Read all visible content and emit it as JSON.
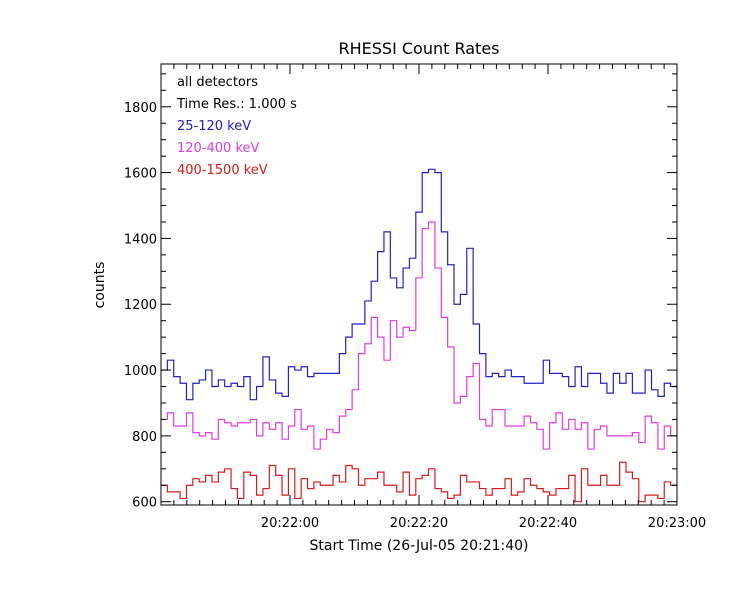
{
  "chart_data": {
    "type": "line",
    "title": "RHESSI Count Rates",
    "xlabel": "Start Time (26-Jul-05 20:21:40)",
    "ylabel": "counts",
    "x_unit": "seconds",
    "xlim": [
      0,
      80
    ],
    "ylim": [
      590,
      1930
    ],
    "x_ticks": [
      {
        "value": 20,
        "label": "20:22:00"
      },
      {
        "value": 40,
        "label": "20:22:20"
      },
      {
        "value": 60,
        "label": "20:22:40"
      },
      {
        "value": 80,
        "label": "20:23:00"
      }
    ],
    "y_ticks": [
      {
        "value": 600,
        "label": "600"
      },
      {
        "value": 800,
        "label": "800"
      },
      {
        "value": 1000,
        "label": "1000"
      },
      {
        "value": 1200,
        "label": "1200"
      },
      {
        "value": 1400,
        "label": "1400"
      },
      {
        "value": 1600,
        "label": "1600"
      },
      {
        "value": 1800,
        "label": "1800"
      }
    ],
    "grid": false,
    "legend_position": "top-left",
    "annotations": [
      "all detectors",
      "Time Res.: 1.000 s"
    ],
    "series": [
      {
        "name": "25-120 keV",
        "color": "#2222cc",
        "values": [
          1000,
          1030,
          980,
          960,
          910,
          960,
          970,
          1000,
          950,
          970,
          950,
          960,
          950,
          980,
          910,
          950,
          1040,
          970,
          930,
          920,
          1010,
          1000,
          1010,
          980,
          990,
          990,
          990,
          990,
          1050,
          1100,
          1140,
          1140,
          1210,
          1270,
          1360,
          1420,
          1280,
          1250,
          1310,
          1340,
          1480,
          1600,
          1610,
          1600,
          1420,
          1320,
          1200,
          1230,
          1370,
          1140,
          1050,
          980,
          990,
          980,
          1000,
          980,
          980,
          960,
          960,
          960,
          1030,
          990,
          990,
          980,
          950,
          1010,
          950,
          990,
          990,
          960,
          930,
          990,
          960,
          990,
          930,
          930,
          1000,
          940,
          920,
          960,
          950
        ]
      },
      {
        "name": "120-400 keV",
        "color": "#e23ce2",
        "values": [
          850,
          870,
          830,
          830,
          870,
          810,
          800,
          810,
          790,
          850,
          840,
          830,
          840,
          840,
          850,
          800,
          840,
          820,
          840,
          790,
          830,
          880,
          820,
          830,
          760,
          790,
          820,
          810,
          860,
          880,
          940,
          1050,
          1080,
          1160,
          1100,
          1030,
          1150,
          1100,
          1130,
          1120,
          1280,
          1430,
          1450,
          1310,
          1160,
          1070,
          900,
          920,
          980,
          1020,
          850,
          830,
          880,
          880,
          830,
          830,
          830,
          860,
          840,
          820,
          760,
          840,
          870,
          820,
          850,
          820,
          840,
          760,
          820,
          830,
          800,
          800,
          800,
          800,
          810,
          780,
          860,
          840,
          760,
          830,
          800
        ]
      },
      {
        "name": "400-1500 keV",
        "color": "#dd1a1a",
        "values": [
          650,
          630,
          630,
          610,
          650,
          670,
          660,
          680,
          660,
          690,
          700,
          640,
          610,
          690,
          680,
          620,
          640,
          710,
          680,
          620,
          700,
          610,
          670,
          640,
          660,
          650,
          650,
          680,
          660,
          710,
          700,
          650,
          670,
          670,
          690,
          650,
          650,
          630,
          690,
          620,
          670,
          680,
          700,
          640,
          630,
          610,
          620,
          680,
          660,
          660,
          640,
          620,
          640,
          640,
          670,
          620,
          630,
          670,
          650,
          640,
          630,
          620,
          640,
          640,
          680,
          600,
          700,
          650,
          650,
          680,
          650,
          650,
          720,
          690,
          670,
          600,
          620,
          620,
          610,
          660,
          650
        ]
      }
    ]
  }
}
